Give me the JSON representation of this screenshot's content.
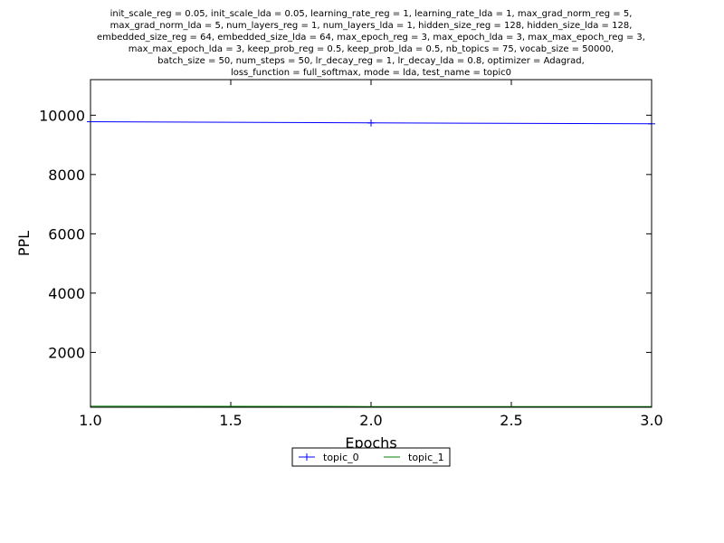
{
  "chart_data": {
    "type": "line",
    "title_lines": [
      "init_scale_reg = 0.05, init_scale_lda = 0.05, learning_rate_reg = 1, learning_rate_lda = 1, max_grad_norm_reg = 5,",
      "max_grad_norm_lda = 5, num_layers_reg = 1, num_layers_lda = 1, hidden_size_reg = 128, hidden_size_lda = 128,",
      "embedded_size_reg = 64, embedded_size_lda = 64, max_epoch_reg = 3, max_epoch_lda = 3, max_max_epoch_reg = 3,",
      "max_max_epoch_lda = 3, keep_prob_reg = 0.5, keep_prob_lda = 0.5, nb_topics = 75, vocab_size = 50000,",
      "batch_size = 50, num_steps = 50, lr_decay_reg = 1, lr_decay_lda = 0.8, optimizer = Adagrad,",
      "loss_function = full_softmax, mode = lda, test_name = topic0"
    ],
    "xlabel": "Epochs",
    "ylabel": "PPL",
    "xlim": [
      1.0,
      3.0
    ],
    "ylim": [
      150,
      11200
    ],
    "x_ticks": [
      "1.0",
      "1.5",
      "2.0",
      "2.5",
      "3.0"
    ],
    "y_ticks": [
      "2000",
      "4000",
      "6000",
      "8000",
      "10000"
    ],
    "legend_position": "below",
    "series": [
      {
        "name": "topic_0",
        "color": "#0000ff",
        "marker": "plus",
        "x": [
          1,
          2,
          3
        ],
        "y": [
          9780,
          9740,
          9710
        ]
      },
      {
        "name": "topic_1",
        "color": "#008000",
        "marker": "none",
        "x": [
          1,
          2,
          3
        ],
        "y": [
          185,
          175,
          170
        ]
      }
    ]
  }
}
